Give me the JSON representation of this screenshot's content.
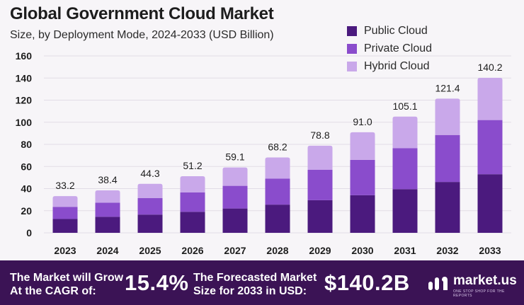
{
  "header": {
    "title": "Global Government Cloud Market",
    "subtitle": "Size, by Deployment Mode, 2024-2033 (USD Billion)"
  },
  "chart_data": {
    "type": "bar",
    "stacked": true,
    "categories": [
      "2023",
      "2024",
      "2025",
      "2026",
      "2027",
      "2028",
      "2029",
      "2030",
      "2031",
      "2032",
      "2033"
    ],
    "series": [
      {
        "name": "Public Cloud",
        "color": "#4b1a7e",
        "values": [
          12.5,
          14.5,
          16.5,
          19.0,
          22.0,
          25.5,
          29.5,
          34.0,
          39.5,
          46.0,
          53.0
        ]
      },
      {
        "name": "Private Cloud",
        "color": "#8a4ccc",
        "values": [
          11.0,
          12.8,
          15.0,
          17.5,
          20.5,
          23.5,
          27.5,
          32.0,
          37.0,
          42.5,
          49.0
        ]
      },
      {
        "name": "Hybrid Cloud",
        "color": "#c9a8ea",
        "values": [
          9.7,
          11.1,
          12.8,
          14.7,
          16.6,
          19.2,
          21.8,
          25.0,
          28.6,
          32.9,
          38.2
        ]
      }
    ],
    "totals": [
      "33.2",
      "38.4",
      "44.3",
      "51.2",
      "59.1",
      "68.2",
      "78.8",
      "91.0",
      "105.1",
      "121.4",
      "140.2"
    ],
    "yticks": [
      "0",
      "20",
      "40",
      "60",
      "80",
      "100",
      "120",
      "140",
      "160"
    ],
    "ylim": [
      0,
      160
    ],
    "grid": true,
    "legend_position": "top-right"
  },
  "footer": {
    "growth_label_line1": "The Market will Grow",
    "growth_label_line2": "At the CAGR of:",
    "cagr_value": "15.4%",
    "forecast_label_line1": "The Forecasted Market",
    "forecast_label_line2": "Size for 2033 in USD:",
    "forecast_value": "$140.2B",
    "brand_name": "market.us",
    "brand_tagline": "ONE STOP SHOP FOR THE REPORTS"
  }
}
